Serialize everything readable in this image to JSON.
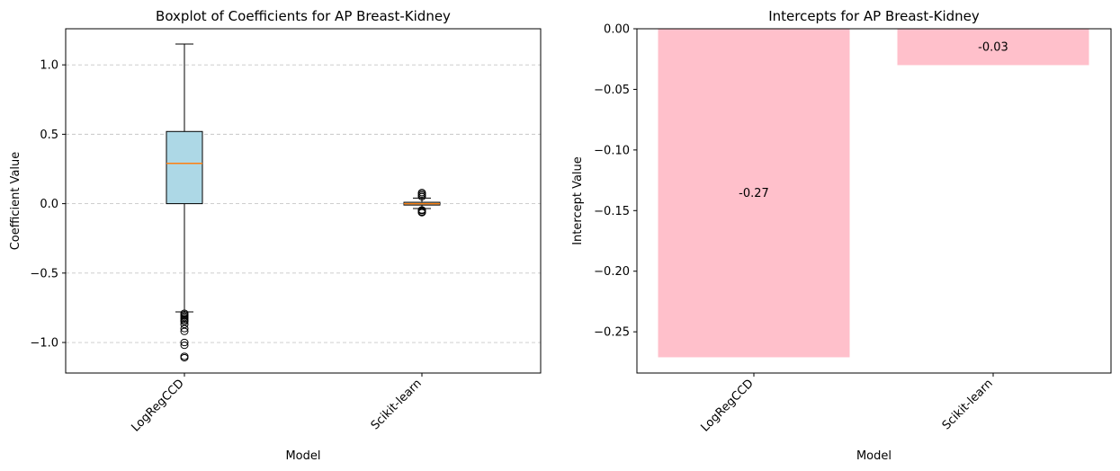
{
  "chart_data": [
    {
      "type": "box",
      "title": "Boxplot of Coefficients for AP Breast-Kidney",
      "xlabel": "Model",
      "ylabel": "Coefficient Value",
      "categories": [
        "LogRegCCD",
        "Scikit-learn"
      ],
      "ylim": [
        -1.22,
        1.26
      ],
      "yticks": [
        -1.0,
        -0.5,
        0.0,
        0.5,
        1.0
      ],
      "ytick_labels": [
        "−1.0",
        "−0.5",
        "0.0",
        "0.5",
        "1.0"
      ],
      "grid": "y-dashed",
      "box_color": "#add8e6",
      "median_color": "#ff7f0e",
      "boxes": [
        {
          "name": "LogRegCCD",
          "whisker_low": -0.78,
          "q1": 0.0,
          "median": 0.29,
          "q3": 0.52,
          "whisker_high": 1.15,
          "outliers": [
            -0.79,
            -0.8,
            -0.81,
            -0.82,
            -0.83,
            -0.84,
            -0.85,
            -0.87,
            -0.9,
            -0.92,
            -1.0,
            -1.02,
            -1.1,
            -1.11
          ]
        },
        {
          "name": "Scikit-learn",
          "whisker_low": -0.035,
          "q1": -0.01,
          "median": 0.0,
          "q3": 0.01,
          "whisker_high": 0.04,
          "outliers": [
            -0.045,
            -0.05,
            -0.06,
            -0.065,
            0.05,
            0.06,
            0.07,
            0.08
          ]
        }
      ]
    },
    {
      "type": "bar",
      "title": "Intercepts for AP Breast-Kidney",
      "xlabel": "Model",
      "ylabel": "Intercept Value",
      "categories": [
        "LogRegCCD",
        "Scikit-learn"
      ],
      "values": [
        -0.271,
        -0.03
      ],
      "data_labels": [
        "-0.27",
        "-0.03"
      ],
      "ylim": [
        -0.284,
        0.0
      ],
      "yticks": [
        0.0,
        -0.05,
        -0.1,
        -0.15,
        -0.2,
        -0.25
      ],
      "ytick_labels": [
        "0.00",
        "−0.05",
        "−0.10",
        "−0.15",
        "−0.20",
        "−0.25"
      ],
      "grid": "none",
      "bar_color": "#ffc0cb"
    }
  ]
}
